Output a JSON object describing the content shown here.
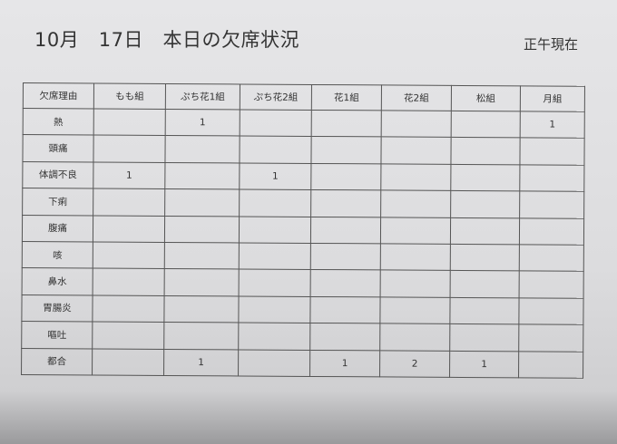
{
  "header": {
    "title": "10月　17日　本日の欠席状況",
    "as_of": "正午現在"
  },
  "table": {
    "columns": [
      "欠席理由",
      "もも組",
      "ぷち花1組",
      "ぷち花2組",
      "花1組",
      "花2組",
      "松組",
      "月組"
    ],
    "rows": [
      {
        "reason": "熱",
        "values": [
          "",
          "1",
          "",
          "",
          "",
          "",
          "1"
        ]
      },
      {
        "reason": "頭痛",
        "values": [
          "",
          "",
          "",
          "",
          "",
          "",
          ""
        ]
      },
      {
        "reason": "体調不良",
        "values": [
          "1",
          "",
          "1",
          "",
          "",
          "",
          ""
        ]
      },
      {
        "reason": "下痢",
        "values": [
          "",
          "",
          "",
          "",
          "",
          "",
          ""
        ]
      },
      {
        "reason": "腹痛",
        "values": [
          "",
          "",
          "",
          "",
          "",
          "",
          ""
        ]
      },
      {
        "reason": "咳",
        "values": [
          "",
          "",
          "",
          "",
          "",
          "",
          ""
        ]
      },
      {
        "reason": "鼻水",
        "values": [
          "",
          "",
          "",
          "",
          "",
          "",
          ""
        ]
      },
      {
        "reason": "胃腸炎",
        "values": [
          "",
          "",
          "",
          "",
          "",
          "",
          ""
        ]
      },
      {
        "reason": "嘔吐",
        "values": [
          "",
          "",
          "",
          "",
          "",
          "",
          ""
        ]
      },
      {
        "reason": "都合",
        "values": [
          "",
          "1",
          "",
          "1",
          "2",
          "1",
          ""
        ]
      }
    ]
  }
}
